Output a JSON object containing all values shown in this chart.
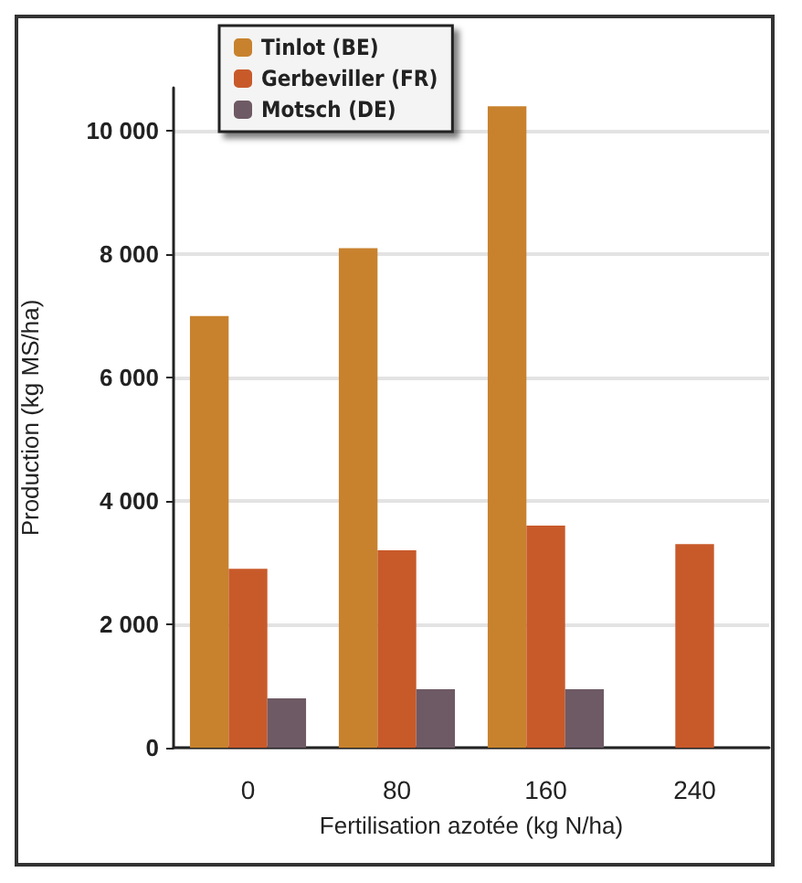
{
  "chart_data": {
    "type": "bar",
    "xlabel": "Fertilisation azotée (kg N/ha)",
    "ylabel": "Production (kg MS/ha)",
    "categories": [
      "0",
      "80",
      "160",
      "240"
    ],
    "series": [
      {
        "name": "Tinlot (BE)",
        "color": "#c8822e",
        "values": [
          7000,
          8100,
          10400,
          null
        ]
      },
      {
        "name": "Gerbeviller (FR)",
        "color": "#c85a2a",
        "values": [
          2900,
          3200,
          3600,
          3300
        ]
      },
      {
        "name": "Motsch (DE)",
        "color": "#6e5a64",
        "values": [
          800,
          950,
          950,
          null
        ]
      }
    ],
    "ylim": [
      0,
      10700
    ],
    "yticks": [
      {
        "value": 0,
        "label": "0"
      },
      {
        "value": 2000,
        "label": "2 000"
      },
      {
        "value": 4000,
        "label": "4 000"
      },
      {
        "value": 6000,
        "label": "6 000"
      },
      {
        "value": 8000,
        "label": "8 000"
      },
      {
        "value": 10000,
        "label": "10 000"
      }
    ],
    "grid": "y",
    "legend": "top left"
  }
}
